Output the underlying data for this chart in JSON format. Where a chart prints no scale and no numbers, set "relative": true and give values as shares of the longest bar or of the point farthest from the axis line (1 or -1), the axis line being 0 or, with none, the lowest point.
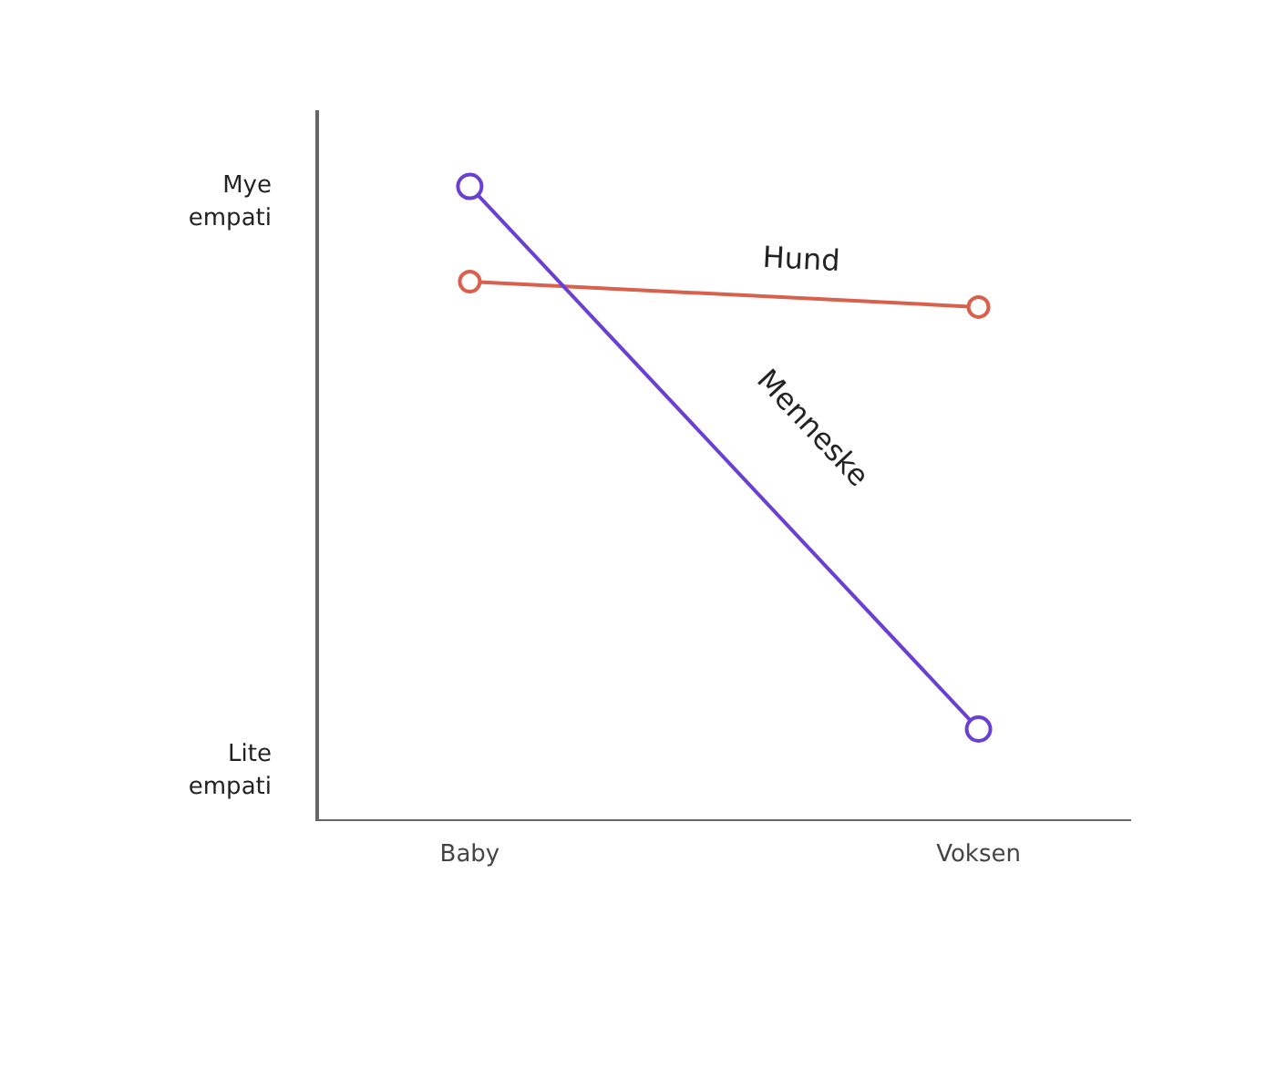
{
  "chart_data": {
    "type": "line",
    "relative": true,
    "categories": [
      "Baby",
      "Voksen"
    ],
    "marker": "circle",
    "grid": false,
    "legend": false,
    "series": [
      {
        "name": "Hund",
        "color": "#d9604c",
        "values": [
          0.85,
          0.81
        ]
      },
      {
        "name": "Menneske",
        "color": "#6a3fd4",
        "values": [
          1,
          0.145
        ]
      }
    ],
    "annotations": [
      "Mye\nempati",
      "Lite\nempati"
    ]
  }
}
